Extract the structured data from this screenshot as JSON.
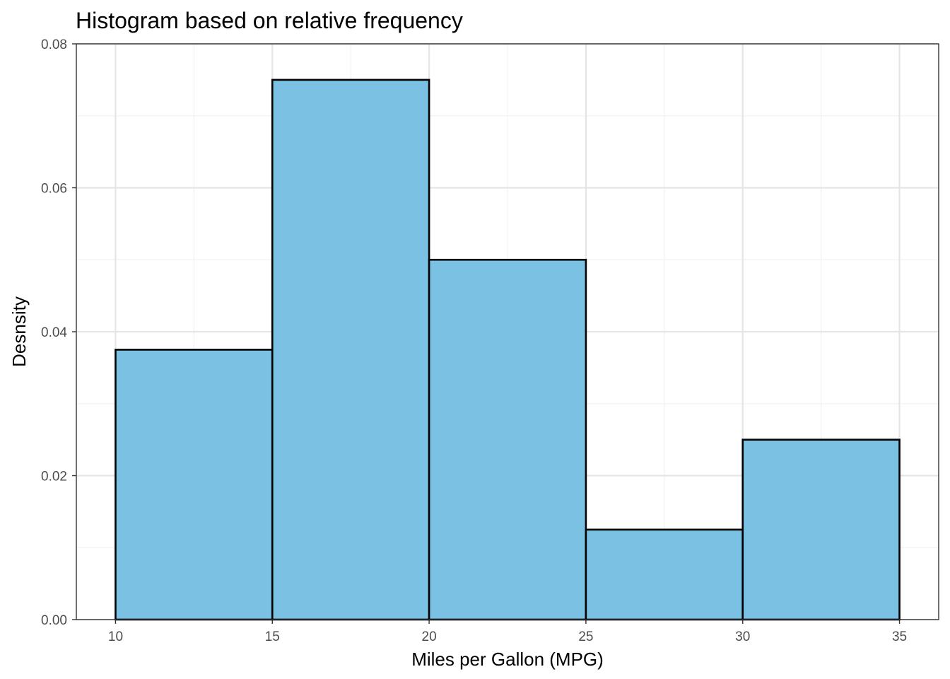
{
  "chart_data": {
    "type": "bar",
    "title": "Histogram based on relative frequency",
    "xlabel": "Miles per Gallon (MPG)",
    "ylabel": "Desnsity",
    "bins": [
      {
        "x0": 10,
        "x1": 15,
        "value": 0.0375
      },
      {
        "x0": 15,
        "x1": 20,
        "value": 0.075
      },
      {
        "x0": 20,
        "x1": 25,
        "value": 0.05
      },
      {
        "x0": 25,
        "x1": 30,
        "value": 0.0125
      },
      {
        "x0": 30,
        "x1": 35,
        "value": 0.025
      }
    ],
    "xlim": [
      8.75,
      36.25
    ],
    "ylim": [
      0,
      0.08
    ],
    "xticks": [
      10,
      15,
      20,
      25,
      30,
      35
    ],
    "xtick_labels": [
      "10",
      "15",
      "20",
      "25",
      "30",
      "35"
    ],
    "yticks": [
      0,
      0.02,
      0.04,
      0.06,
      0.08
    ],
    "ytick_labels": [
      "0.00",
      "0.02",
      "0.04",
      "0.06",
      "0.08"
    ],
    "grid": true,
    "colors": {
      "bar_fill": "#7AC1E4",
      "bar_stroke": "#000000",
      "grid_major": "#E5E5E5",
      "grid_minor": "#F2F2F2",
      "panel_border": "#333333"
    }
  }
}
